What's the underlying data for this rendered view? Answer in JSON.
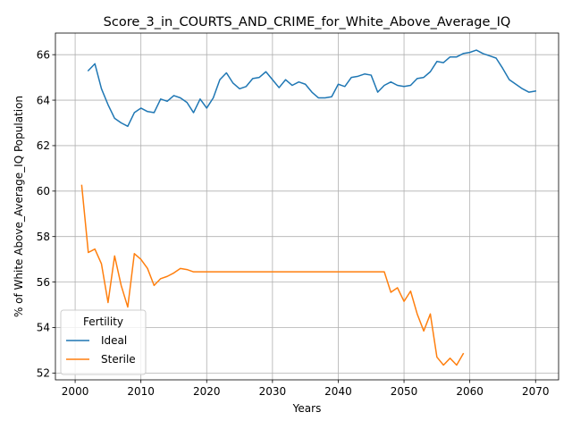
{
  "chart_data": {
    "type": "line",
    "title": "Score_3_in_COURTS_AND_CRIME_for_White_Above_Average_IQ",
    "xlabel": "Years",
    "ylabel": "% of White Above_Average_IQ Population",
    "xlim": [
      1997,
      2073.5
    ],
    "ylim": [
      51.7,
      66.95
    ],
    "xticks": [
      2000,
      2010,
      2020,
      2030,
      2040,
      2050,
      2060,
      2070
    ],
    "yticks": [
      52,
      54,
      56,
      58,
      60,
      62,
      64,
      66
    ],
    "grid": true,
    "legend": {
      "title": "Fertility",
      "position": "lower-left"
    },
    "series": [
      {
        "name": "Ideal",
        "color": "#1f77b4",
        "x": [
          2002,
          2003,
          2004,
          2005,
          2006,
          2007,
          2008,
          2009,
          2010,
          2011,
          2012,
          2013,
          2014,
          2015,
          2016,
          2017,
          2018,
          2019,
          2020,
          2021,
          2022,
          2023,
          2024,
          2025,
          2026,
          2027,
          2028,
          2029,
          2030,
          2031,
          2032,
          2033,
          2034,
          2035,
          2036,
          2037,
          2038,
          2039,
          2040,
          2041,
          2042,
          2043,
          2044,
          2045,
          2046,
          2047,
          2048,
          2049,
          2050,
          2051,
          2052,
          2053,
          2054,
          2055,
          2056,
          2057,
          2058,
          2059,
          2060,
          2061,
          2062,
          2063,
          2064,
          2065,
          2066,
          2067,
          2068,
          2069,
          2070
        ],
        "values": [
          65.3,
          65.6,
          64.5,
          63.8,
          63.2,
          63.0,
          62.85,
          63.45,
          63.65,
          63.5,
          63.45,
          64.05,
          63.95,
          64.2,
          64.1,
          63.9,
          63.45,
          64.05,
          63.65,
          64.1,
          64.9,
          65.2,
          64.75,
          64.5,
          64.6,
          64.95,
          65.0,
          65.25,
          64.9,
          64.55,
          64.9,
          64.65,
          64.8,
          64.7,
          64.35,
          64.1,
          64.1,
          64.15,
          64.7,
          64.6,
          65.0,
          65.05,
          65.15,
          65.1,
          64.35,
          64.65,
          64.8,
          64.65,
          64.6,
          64.65,
          64.95,
          65.0,
          65.25,
          65.7,
          65.65,
          65.9,
          65.9,
          66.05,
          66.1,
          66.2,
          66.05,
          65.95,
          65.85,
          65.4,
          64.9,
          64.7,
          64.5,
          64.35,
          64.4
        ]
      },
      {
        "name": "Sterile",
        "color": "#ff7f0e",
        "x": [
          2001,
          2002,
          2003,
          2004,
          2005,
          2006,
          2007,
          2008,
          2009,
          2010,
          2011,
          2012,
          2013,
          2014,
          2015,
          2016,
          2017,
          2018,
          2019,
          2020,
          2021,
          2022,
          2023,
          2024,
          2025,
          2026,
          2027,
          2028,
          2029,
          2030,
          2031,
          2032,
          2033,
          2034,
          2035,
          2036,
          2037,
          2038,
          2039,
          2040,
          2041,
          2042,
          2043,
          2044,
          2045,
          2046,
          2047,
          2048,
          2049,
          2050,
          2051,
          2052,
          2053,
          2054,
          2055,
          2056,
          2057,
          2058,
          2059
        ],
        "values": [
          60.25,
          57.3,
          57.45,
          56.8,
          55.1,
          57.15,
          55.85,
          54.9,
          57.25,
          57.0,
          56.6,
          55.85,
          56.15,
          56.25,
          56.4,
          56.6,
          56.55,
          56.45,
          56.45,
          56.45,
          56.45,
          56.45,
          56.45,
          56.45,
          56.45,
          56.45,
          56.45,
          56.45,
          56.45,
          56.45,
          56.45,
          56.45,
          56.45,
          56.45,
          56.45,
          56.45,
          56.45,
          56.45,
          56.45,
          56.45,
          56.45,
          56.45,
          56.45,
          56.45,
          56.45,
          56.45,
          56.45,
          55.55,
          55.75,
          55.15,
          55.6,
          54.6,
          53.85,
          54.6,
          52.7,
          52.35,
          52.65,
          52.35,
          52.85
        ]
      }
    ]
  }
}
